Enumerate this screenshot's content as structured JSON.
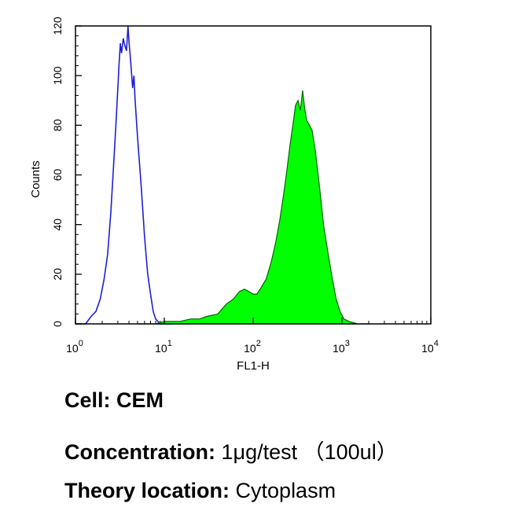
{
  "chart_data": {
    "type": "histogram",
    "xscale": "log",
    "xlim": [
      1,
      10000
    ],
    "ylim": [
      0,
      120
    ],
    "xlabel": "FL1-H",
    "ylabel": "Counts",
    "x_ticks": [
      {
        "value": 1,
        "base": "10",
        "exp": "0"
      },
      {
        "value": 10,
        "base": "10",
        "exp": "1"
      },
      {
        "value": 100,
        "base": "10",
        "exp": "2"
      },
      {
        "value": 1000,
        "base": "10",
        "exp": "3"
      },
      {
        "value": 10000,
        "base": "10",
        "exp": "4"
      }
    ],
    "y_ticks": [
      "0",
      "20",
      "40",
      "60",
      "80",
      "100",
      "120"
    ],
    "series": [
      {
        "style": "outline",
        "color": "#1f1fd6",
        "points": [
          [
            1.0,
            0
          ],
          [
            1.3,
            0
          ],
          [
            1.5,
            3
          ],
          [
            1.7,
            5
          ],
          [
            1.9,
            10
          ],
          [
            2.1,
            18
          ],
          [
            2.3,
            28
          ],
          [
            2.5,
            45
          ],
          [
            2.7,
            65
          ],
          [
            2.85,
            80
          ],
          [
            3.0,
            95
          ],
          [
            3.1,
            105
          ],
          [
            3.2,
            113
          ],
          [
            3.3,
            109
          ],
          [
            3.45,
            115
          ],
          [
            3.6,
            112
          ],
          [
            3.75,
            110
          ],
          [
            3.9,
            120
          ],
          [
            4.0,
            114
          ],
          [
            4.2,
            105
          ],
          [
            4.4,
            95
          ],
          [
            4.55,
            100
          ],
          [
            4.7,
            90
          ],
          [
            5.0,
            75
          ],
          [
            5.5,
            55
          ],
          [
            6.0,
            35
          ],
          [
            6.5,
            20
          ],
          [
            7.0,
            12
          ],
          [
            7.5,
            5
          ],
          [
            8.0,
            2
          ],
          [
            9.0,
            0
          ],
          [
            12.0,
            0
          ]
        ]
      },
      {
        "style": "filled",
        "color": "#00ff00",
        "points": [
          [
            5.0,
            0
          ],
          [
            8.0,
            0
          ],
          [
            10.0,
            1
          ],
          [
            15.0,
            1
          ],
          [
            20.0,
            2
          ],
          [
            25.0,
            2
          ],
          [
            30.0,
            3
          ],
          [
            40.0,
            4
          ],
          [
            50.0,
            8
          ],
          [
            60.0,
            10
          ],
          [
            70.0,
            13
          ],
          [
            80.0,
            14
          ],
          [
            90.0,
            13
          ],
          [
            100.0,
            12
          ],
          [
            110.0,
            12
          ],
          [
            120.0,
            14
          ],
          [
            140.0,
            18
          ],
          [
            160.0,
            25
          ],
          [
            180.0,
            33
          ],
          [
            200.0,
            42
          ],
          [
            220.0,
            52
          ],
          [
            240.0,
            62
          ],
          [
            260.0,
            72
          ],
          [
            280.0,
            80
          ],
          [
            300.0,
            88
          ],
          [
            320.0,
            90
          ],
          [
            340.0,
            86
          ],
          [
            360.0,
            94
          ],
          [
            380.0,
            87
          ],
          [
            400.0,
            82
          ],
          [
            430.0,
            80
          ],
          [
            460.0,
            78
          ],
          [
            500.0,
            70
          ],
          [
            560.0,
            55
          ],
          [
            620.0,
            40
          ],
          [
            700.0,
            28
          ],
          [
            780.0,
            18
          ],
          [
            860.0,
            10
          ],
          [
            950.0,
            5
          ],
          [
            1050.0,
            2
          ],
          [
            1200.0,
            1
          ],
          [
            1500.0,
            0
          ],
          [
            2000.0,
            0
          ]
        ]
      }
    ]
  },
  "info": {
    "cell": {
      "label": "Cell:",
      "value": "CEM"
    },
    "concentration": {
      "label": "Concentration:",
      "value": "1μg/test （100ul）"
    },
    "theory_location": {
      "label": "Theory location:",
      "value": "Cytoplasm"
    }
  }
}
